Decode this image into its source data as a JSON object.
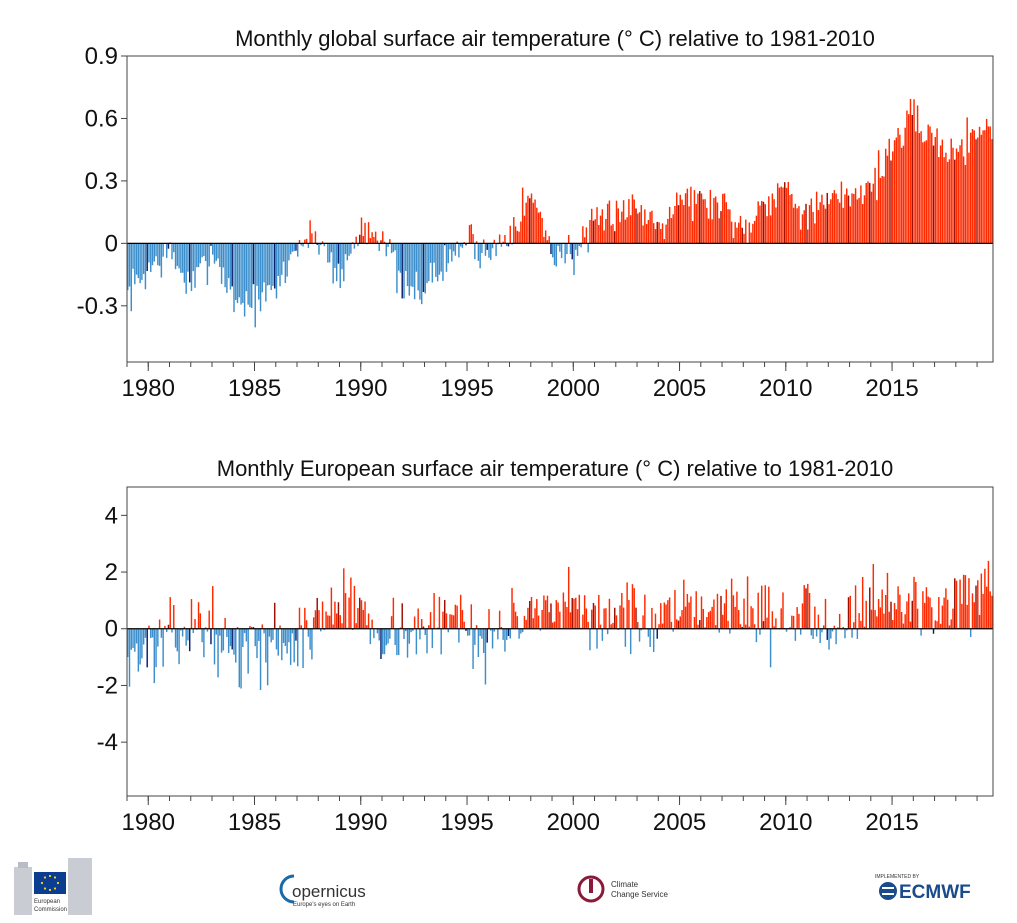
{
  "colors": {
    "positive": "#ff2a00",
    "positive_dark": "#9b0e00",
    "negative": "#3d8fcc",
    "negative_dark": "#0a1f6e",
    "axis": "#000000"
  },
  "chart_data": [
    {
      "type": "bar",
      "id": "global",
      "title": "Monthly  global surface air temperature (° C) relative to 1981-2010",
      "xlabel": "",
      "ylabel": "",
      "xlim": [
        1979.0,
        2019.75
      ],
      "ylim": [
        -0.57,
        0.9
      ],
      "x_ticks": [
        1980,
        1985,
        1990,
        1995,
        2000,
        2005,
        2010,
        2015
      ],
      "x_tick_labels": [
        "1980",
        "1985",
        "1990",
        "1995",
        "2000",
        "2005",
        "2010",
        "2015"
      ],
      "y_ticks": [
        0.9,
        0.6,
        0.3,
        0,
        -0.3
      ],
      "y_tick_labels": [
        "0.9",
        "0.6",
        "0.3",
        "0",
        "-0.3"
      ],
      "grid": false,
      "x_start": 1979.0,
      "x_step": 0.0833333,
      "annual_means": [
        -0.25,
        -0.12,
        -0.05,
        -0.22,
        -0.03,
        -0.27,
        -0.29,
        -0.22,
        0.0,
        0.03,
        -0.17,
        0.08,
        0.05,
        -0.25,
        -0.2,
        -0.1,
        0.03,
        -0.06,
        0.08,
        0.23,
        -0.04,
        -0.05,
        0.07,
        0.17,
        0.17,
        0.1,
        0.23,
        0.2,
        0.19,
        0.06,
        0.22,
        0.27,
        0.14,
        0.19,
        0.24,
        0.28,
        0.47,
        0.6,
        0.49,
        0.43,
        0.56
      ],
      "monthly_variability": 0.08,
      "seed": 7
    },
    {
      "type": "bar",
      "id": "europe",
      "title": "Monthly  European surface air temperature (° C) relative to 1981-2010",
      "xlabel": "",
      "ylabel": "",
      "xlim": [
        1979.0,
        2019.75
      ],
      "ylim": [
        -5.9,
        5.0
      ],
      "x_ticks": [
        1980,
        1985,
        1990,
        1995,
        2000,
        2005,
        2010,
        2015
      ],
      "x_tick_labels": [
        "1980",
        "1985",
        "1990",
        "1995",
        "2000",
        "2005",
        "2010",
        "2015"
      ],
      "y_ticks": [
        4,
        2,
        0,
        -2,
        -4
      ],
      "y_tick_labels": [
        "4",
        "2",
        "0",
        "-2",
        "-4"
      ],
      "grid": false,
      "x_start": 1979.0,
      "x_step": 0.0833333,
      "annual_means": [
        -0.9,
        -0.8,
        -0.4,
        0.1,
        0.0,
        -1.1,
        -0.7,
        -0.4,
        -0.6,
        0.4,
        0.9,
        0.7,
        -0.2,
        0.0,
        -0.3,
        0.5,
        0.3,
        -0.6,
        0.4,
        0.2,
        0.4,
        0.8,
        0.4,
        0.6,
        0.3,
        0.1,
        0.3,
        0.8,
        0.9,
        0.7,
        0.5,
        0.0,
        0.7,
        0.3,
        0.5,
        1.2,
        0.9,
        0.8,
        0.8,
        1.1,
        1.0
      ],
      "monthly_variability": 1.0,
      "seed": 13
    }
  ],
  "logos": {
    "ec_line1": "European",
    "ec_line2": "Commission",
    "copernicus": "opernicus",
    "copernicus_sub": "Europe's eyes on Earth",
    "c3s_line1": "Climate",
    "c3s_line2": "Change Service",
    "ecmwf_small": "IMPLEMENTED BY",
    "ecmwf": "ECMWF"
  }
}
